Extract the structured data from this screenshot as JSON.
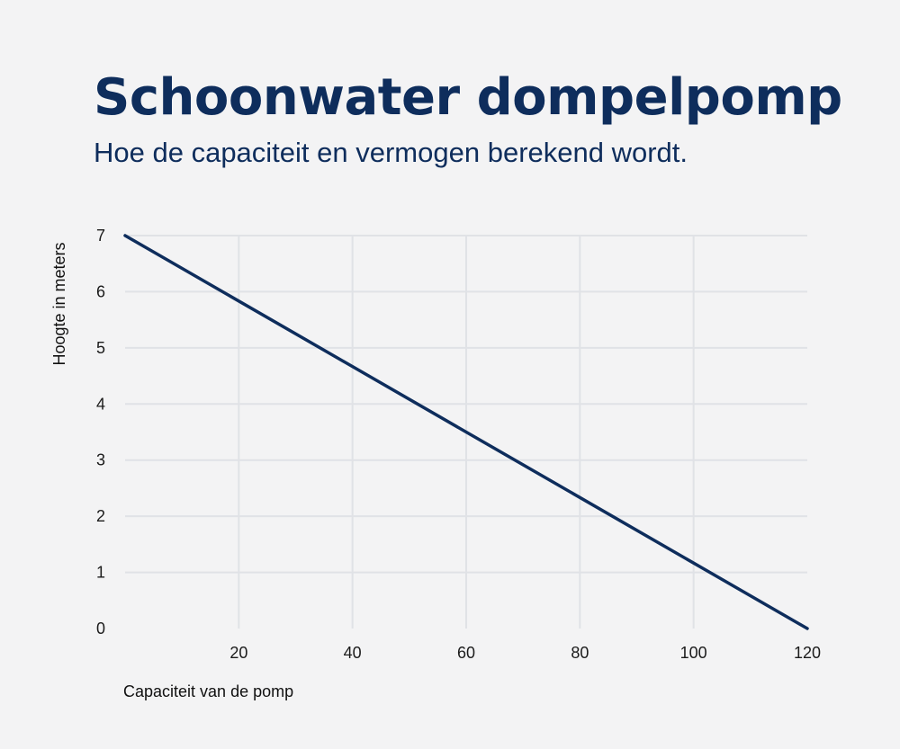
{
  "page": {
    "title": "Schoonwater dompelpomp",
    "subtitle": "Hoe de capaciteit en vermogen berekend wordt."
  },
  "colors": {
    "background": "#f3f3f4",
    "title": "#0e2d5c",
    "line": "#0e2d5c",
    "grid": "#e0e2e6"
  },
  "chart_data": {
    "type": "line",
    "title": "",
    "xlabel": "Capaciteit van de pomp",
    "ylabel": "Hoogte in meters",
    "xlim": [
      0,
      120
    ],
    "ylim": [
      0,
      7
    ],
    "x_ticks": [
      20,
      40,
      60,
      80,
      100,
      120
    ],
    "y_ticks": [
      0,
      1,
      2,
      3,
      4,
      5,
      6,
      7
    ],
    "grid": true,
    "series": [
      {
        "x": [
          0,
          120
        ],
        "y": [
          7,
          0
        ]
      }
    ]
  }
}
